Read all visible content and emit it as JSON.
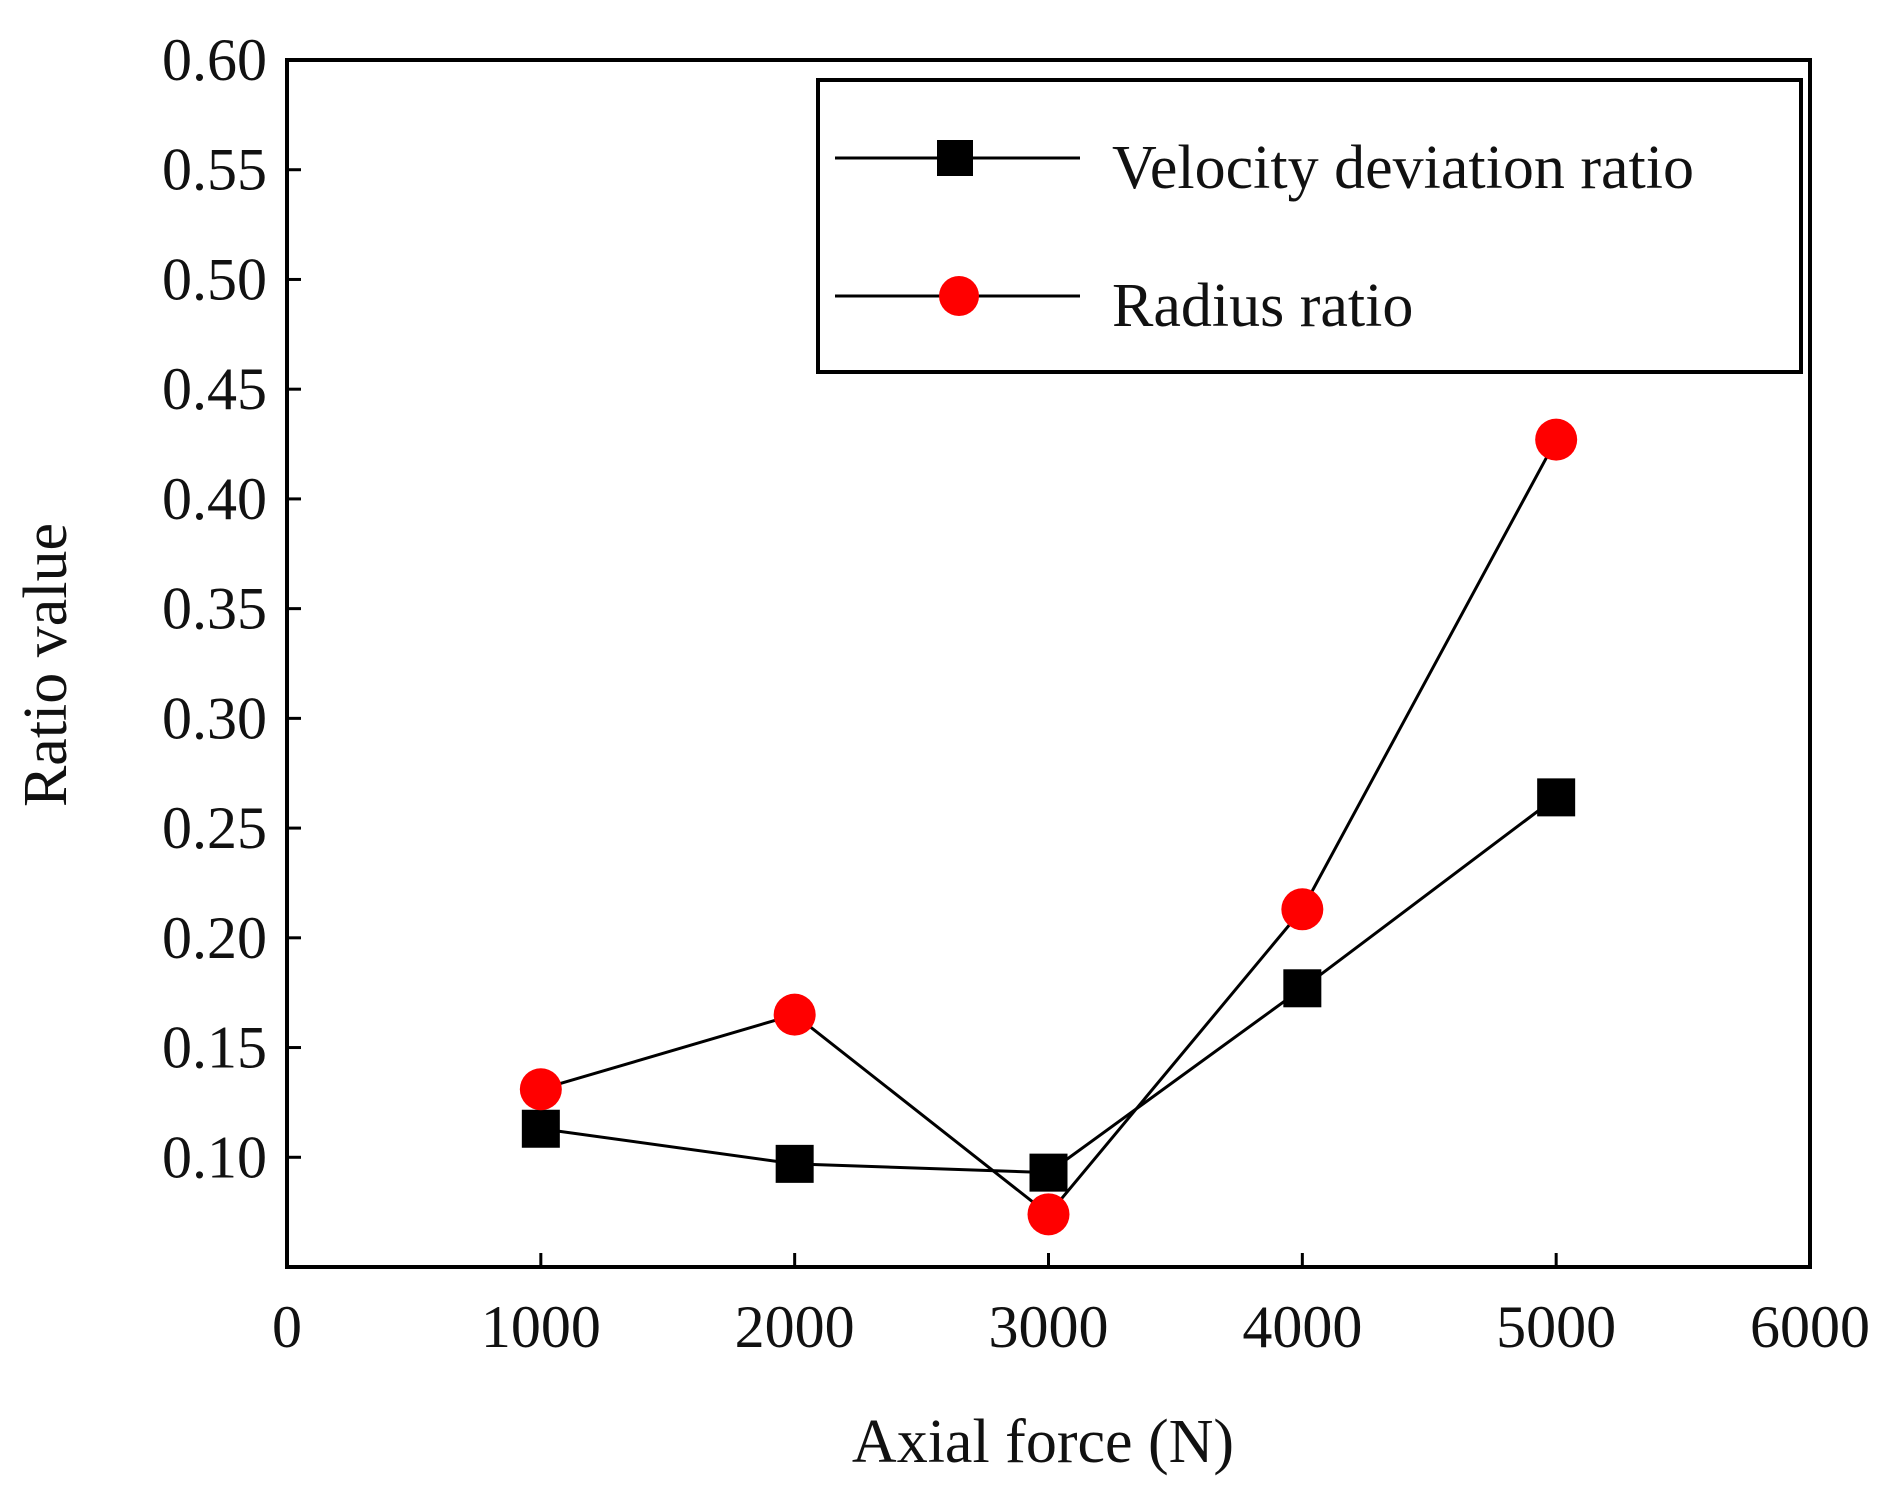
{
  "chart_data": {
    "type": "line",
    "title": "",
    "xlabel": "Axial force (N)",
    "ylabel": "Ratio value",
    "xlim": [
      0,
      6000
    ],
    "ylim": [
      0.05,
      0.6
    ],
    "x_ticks": [
      0,
      1000,
      2000,
      3000,
      4000,
      5000,
      6000
    ],
    "x_tick_labels": [
      "0",
      "1000",
      "2000",
      "3000",
      "4000",
      "5000",
      "6000"
    ],
    "y_ticks": [
      0.1,
      0.15,
      0.2,
      0.25,
      0.3,
      0.35,
      0.4,
      0.45,
      0.5,
      0.55,
      0.6
    ],
    "y_tick_labels": [
      "0.10",
      "0.15",
      "0.20",
      "0.25",
      "0.30",
      "0.35",
      "0.40",
      "0.45",
      "0.50",
      "0.55",
      "0.60"
    ],
    "grid": false,
    "legend_position": "top-right",
    "x": [
      1000,
      2000,
      3000,
      4000,
      5000
    ],
    "series": [
      {
        "name": "Velocity deviation ratio",
        "marker": "square",
        "color": "#000000",
        "line_color": "#000000",
        "values": [
          0.113,
          0.097,
          0.093,
          0.177,
          0.264
        ]
      },
      {
        "name": "Radius ratio",
        "marker": "circle",
        "color": "#ff0000",
        "line_color": "#000000",
        "values": [
          0.131,
          0.165,
          0.074,
          0.213,
          0.427
        ]
      }
    ]
  }
}
